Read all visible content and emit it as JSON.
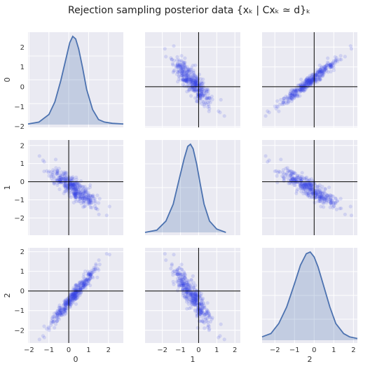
{
  "title": "Rejection sampling posterior data {xₖ | Cxₖ ≃ d}ₖ",
  "variables": [
    "0",
    "1",
    "2"
  ],
  "chart_data": {
    "type": "scatter",
    "title": "Rejection sampling posterior data {xₖ | Cxₖ ≃ d}ₖ",
    "layout": "3x3 pair grid: KDE density on diagonal, scatter off-diagonal, black reference lines at 0",
    "grid": true,
    "axes": {
      "0": {
        "range": [
          -2.05,
          2.75
        ],
        "ticks": [
          -2,
          -1,
          0,
          1,
          2
        ]
      },
      "1": {
        "range": [
          -2.95,
          2.3
        ],
        "ticks": [
          -2,
          -1,
          0,
          1,
          2
        ]
      },
      "2": {
        "range": [
          -2.65,
          2.2
        ],
        "ticks": [
          -2,
          -1,
          0,
          1,
          2
        ]
      }
    },
    "reference_lines": {
      "x": 0,
      "y": 0,
      "color": "#000000"
    },
    "point_color": "#3340e6",
    "kde_color": "#4c72b0",
    "sample_summary": {
      "n_points": 400,
      "means": [
        0.25,
        -0.35,
        -0.25
      ],
      "stds": [
        0.6,
        0.55,
        0.75
      ],
      "correlations": {
        "0-1": -0.85,
        "0-2": 0.97,
        "1-2": -0.9
      }
    },
    "kde": {
      "0": {
        "x": [
          -2.05,
          -1.5,
          -1.0,
          -0.7,
          -0.4,
          -0.1,
          0.05,
          0.2,
          0.35,
          0.5,
          0.7,
          0.9,
          1.2,
          1.5,
          1.8,
          2.2,
          2.75
        ],
        "density": [
          0.005,
          0.02,
          0.08,
          0.18,
          0.35,
          0.55,
          0.65,
          0.7,
          0.68,
          0.6,
          0.45,
          0.28,
          0.12,
          0.04,
          0.02,
          0.01,
          0.005
        ]
      },
      "1": {
        "x": [
          -2.95,
          -2.3,
          -1.8,
          -1.4,
          -1.1,
          -0.8,
          -0.6,
          -0.45,
          -0.3,
          -0.1,
          0.1,
          0.3,
          0.6,
          1.0,
          1.5
        ],
        "density": [
          0.0,
          0.02,
          0.1,
          0.25,
          0.45,
          0.65,
          0.76,
          0.78,
          0.74,
          0.6,
          0.42,
          0.25,
          0.1,
          0.03,
          0.0
        ]
      },
      "2": {
        "x": [
          -2.65,
          -2.2,
          -1.8,
          -1.4,
          -1.0,
          -0.7,
          -0.4,
          -0.2,
          0.0,
          0.2,
          0.5,
          0.8,
          1.1,
          1.5,
          1.8,
          2.2
        ],
        "density": [
          0.02,
          0.04,
          0.1,
          0.2,
          0.34,
          0.45,
          0.52,
          0.53,
          0.5,
          0.44,
          0.32,
          0.2,
          0.1,
          0.04,
          0.02,
          0.01
        ]
      }
    }
  }
}
